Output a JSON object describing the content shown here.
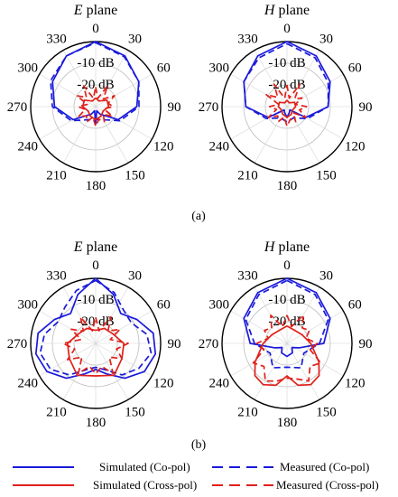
{
  "captions": [
    "(a)",
    "(b)"
  ],
  "legend": [
    {
      "label": "Simulated (Co-pol)",
      "color": "#1a1adb",
      "dash": false
    },
    {
      "label": "Simulated (Cross-pol)",
      "color": "#e0201a",
      "dash": false
    },
    {
      "label": "Measured (Co-pol)",
      "color": "#1a1adb",
      "dash": true
    },
    {
      "label": "Measured (Cross-pol)",
      "color": "#e0201a",
      "dash": true
    }
  ],
  "chart_data": [
    {
      "type": "polar",
      "panel": "(a)",
      "title": "E plane",
      "title_italic": "E",
      "title_rest": " plane",
      "angle_ticks": [
        "0",
        "30",
        "60",
        "90",
        "120",
        "150",
        "180",
        "210",
        "240",
        "270",
        "300",
        "330"
      ],
      "ring_labels": [
        "-10 dB",
        "-20 dB"
      ],
      "r_range_db": [
        -30,
        0
      ],
      "series": [
        {
          "name": "Simulated (Co-pol)",
          "color": "#1a1adb",
          "dash": false,
          "angles_deg": [
            0,
            30,
            60,
            90,
            120,
            150,
            165,
            180,
            195,
            210,
            240,
            270,
            300,
            330,
            360
          ],
          "values_db": [
            0,
            -3,
            -7,
            -11,
            -18,
            -26,
            -28,
            -22,
            -28,
            -26,
            -18,
            -11,
            -7,
            -3,
            0
          ]
        },
        {
          "name": "Measured (Co-pol)",
          "color": "#1a1adb",
          "dash": true,
          "angles_deg": [
            0,
            30,
            60,
            90,
            120,
            150,
            180,
            210,
            240,
            270,
            300,
            330,
            360
          ],
          "values_db": [
            -0.5,
            -3.5,
            -7,
            -10,
            -17,
            -23,
            -24,
            -23,
            -17,
            -10,
            -6,
            -3,
            -0.5
          ]
        },
        {
          "name": "Simulated (Cross-pol)",
          "color": "#e0201a",
          "dash": false,
          "angles_deg": [
            0,
            30,
            60,
            90,
            120,
            150,
            180,
            210,
            240,
            270,
            300,
            330,
            360
          ],
          "values_db": [
            -26,
            -27,
            -24,
            -24,
            -26,
            -25,
            -24,
            -25,
            -26,
            -24,
            -24,
            -27,
            -26
          ]
        },
        {
          "name": "Measured (Cross-pol)",
          "color": "#e0201a",
          "dash": true,
          "angles_deg": [
            0,
            15,
            30,
            45,
            60,
            75,
            90,
            105,
            120,
            135,
            150,
            165,
            180,
            195,
            210,
            225,
            240,
            255,
            270,
            285,
            300,
            315,
            330,
            345,
            360
          ],
          "values_db": [
            -21,
            -26,
            -19,
            -25,
            -20,
            -24,
            -22,
            -26,
            -21,
            -25,
            -22,
            -24,
            -21,
            -25,
            -22,
            -24,
            -21,
            -25,
            -22,
            -26,
            -20,
            -24,
            -19,
            -26,
            -21
          ]
        }
      ]
    },
    {
      "type": "polar",
      "panel": "(a)",
      "title": "H plane",
      "title_italic": "H",
      "title_rest": " plane",
      "angle_ticks": [
        "0",
        "30",
        "60",
        "90",
        "120",
        "150",
        "180",
        "210",
        "240",
        "270",
        "300",
        "330"
      ],
      "ring_labels": [
        "-10 dB",
        "-20 dB"
      ],
      "r_range_db": [
        -30,
        0
      ],
      "series": [
        {
          "name": "Simulated (Co-pol)",
          "color": "#1a1adb",
          "dash": false,
          "angles_deg": [
            0,
            30,
            60,
            90,
            120,
            140,
            160,
            180,
            200,
            220,
            240,
            270,
            300,
            330,
            360
          ],
          "values_db": [
            0,
            -3,
            -7,
            -11,
            -20,
            -28,
            -27,
            -25,
            -27,
            -28,
            -20,
            -11,
            -7,
            -3,
            0
          ]
        },
        {
          "name": "Measured (Co-pol)",
          "color": "#1a1adb",
          "dash": true,
          "angles_deg": [
            0,
            30,
            60,
            90,
            120,
            150,
            180,
            210,
            240,
            270,
            300,
            330,
            360
          ],
          "values_db": [
            -1,
            -4,
            -8,
            -11,
            -19,
            -24,
            -23,
            -24,
            -19,
            -11,
            -7,
            -4,
            -1
          ]
        },
        {
          "name": "Simulated (Cross-pol)",
          "color": "#e0201a",
          "dash": false,
          "angles_deg": [
            0,
            30,
            60,
            90,
            120,
            150,
            180,
            210,
            240,
            270,
            300,
            330,
            360
          ],
          "values_db": [
            -27,
            -28,
            -26,
            -26,
            -27,
            -26,
            -25,
            -26,
            -27,
            -26,
            -26,
            -28,
            -27
          ]
        },
        {
          "name": "Measured (Cross-pol)",
          "color": "#e0201a",
          "dash": true,
          "angles_deg": [
            0,
            15,
            30,
            45,
            60,
            75,
            90,
            105,
            120,
            135,
            150,
            165,
            180,
            195,
            210,
            225,
            240,
            255,
            270,
            285,
            300,
            315,
            330,
            345,
            360
          ],
          "values_db": [
            -20,
            -26,
            -18,
            -25,
            -22,
            -26,
            -21,
            -24,
            -20,
            -26,
            -22,
            -24,
            -21,
            -25,
            -22,
            -24,
            -20,
            -25,
            -22,
            -26,
            -19,
            -24,
            -18,
            -26,
            -20
          ]
        }
      ]
    },
    {
      "type": "polar",
      "panel": "(b)",
      "title": "E plane",
      "title_italic": "E",
      "title_rest": " plane",
      "angle_ticks": [
        "0",
        "30",
        "60",
        "90",
        "120",
        "150",
        "180",
        "210",
        "240",
        "270",
        "300",
        "330"
      ],
      "ring_labels": [
        "-10 dB",
        "-20 dB"
      ],
      "r_range_db": [
        -30,
        0
      ],
      "series": [
        {
          "name": "Simulated (Co-pol)",
          "color": "#1a1adb",
          "dash": false,
          "angles_deg": [
            0,
            20,
            40,
            60,
            80,
            100,
            120,
            140,
            160,
            180,
            200,
            220,
            240,
            260,
            280,
            300,
            320,
            340,
            360
          ],
          "values_db": [
            0,
            -6,
            -12,
            -8,
            -3,
            -2,
            -4,
            -9,
            -15,
            -18,
            -15,
            -9,
            -4,
            -2,
            -3,
            -8,
            -12,
            -6,
            0
          ]
        },
        {
          "name": "Measured (Co-pol)",
          "color": "#1a1adb",
          "dash": true,
          "angles_deg": [
            0,
            20,
            40,
            60,
            80,
            100,
            120,
            140,
            160,
            180,
            200,
            220,
            240,
            260,
            280,
            300,
            320,
            340,
            360
          ],
          "values_db": [
            -1,
            -5,
            -10,
            -11,
            -6,
            -4,
            -7,
            -11,
            -17,
            -19,
            -17,
            -11,
            -6,
            -4,
            -6,
            -10,
            -8,
            -4,
            -1
          ]
        },
        {
          "name": "Simulated (Cross-pol)",
          "color": "#e0201a",
          "dash": false,
          "angles_deg": [
            0,
            30,
            60,
            90,
            120,
            150,
            180,
            210,
            240,
            270,
            300,
            330,
            360
          ],
          "values_db": [
            -24,
            -22,
            -21,
            -17,
            -16,
            -13,
            -15,
            -13,
            -16,
            -17,
            -21,
            -22,
            -24
          ]
        },
        {
          "name": "Measured (Cross-pol)",
          "color": "#e0201a",
          "dash": true,
          "angles_deg": [
            0,
            15,
            30,
            45,
            60,
            75,
            90,
            105,
            120,
            135,
            150,
            165,
            180,
            195,
            210,
            225,
            240,
            255,
            270,
            285,
            300,
            315,
            330,
            345,
            360
          ],
          "values_db": [
            -18,
            -24,
            -16,
            -22,
            -17,
            -23,
            -15,
            -20,
            -16,
            -21,
            -14,
            -19,
            -16,
            -19,
            -14,
            -21,
            -15,
            -20,
            -15,
            -23,
            -17,
            -22,
            -16,
            -24,
            -18
          ]
        }
      ]
    },
    {
      "type": "polar",
      "panel": "(b)",
      "title": "H plane",
      "title_italic": "H",
      "title_rest": " plane",
      "angle_ticks": [
        "0",
        "30",
        "60",
        "90",
        "120",
        "150",
        "180",
        "210",
        "240",
        "270",
        "300",
        "330"
      ],
      "ring_labels": [
        "-10 dB",
        "-20 dB"
      ],
      "r_range_db": [
        -30,
        0
      ],
      "series": [
        {
          "name": "Simulated (Co-pol)",
          "color": "#1a1adb",
          "dash": false,
          "angles_deg": [
            0,
            30,
            60,
            90,
            110,
            130,
            150,
            180,
            210,
            230,
            250,
            270,
            300,
            330,
            360
          ],
          "values_db": [
            0,
            -3,
            -7,
            -13,
            -24,
            -27,
            -25,
            -24,
            -25,
            -27,
            -24,
            -13,
            -7,
            -3,
            0
          ]
        },
        {
          "name": "Measured (Co-pol)",
          "color": "#1a1adb",
          "dash": true,
          "angles_deg": [
            0,
            30,
            60,
            90,
            120,
            150,
            180,
            210,
            240,
            270,
            300,
            330,
            360
          ],
          "values_db": [
            -1,
            -4,
            -8,
            -15,
            -21,
            -17,
            -19,
            -17,
            -21,
            -15,
            -8,
            -4,
            -1
          ]
        },
        {
          "name": "Simulated (Cross-pol)",
          "color": "#e0201a",
          "dash": false,
          "angles_deg": [
            0,
            30,
            60,
            90,
            120,
            135,
            150,
            165,
            180,
            195,
            210,
            225,
            240,
            270,
            300,
            330,
            360
          ],
          "values_db": [
            -22,
            -23,
            -22,
            -19,
            -13,
            -9,
            -8,
            -10,
            -15,
            -10,
            -8,
            -9,
            -13,
            -19,
            -22,
            -23,
            -22
          ]
        },
        {
          "name": "Measured (Cross-pol)",
          "color": "#e0201a",
          "dash": true,
          "angles_deg": [
            0,
            15,
            30,
            45,
            60,
            75,
            90,
            105,
            120,
            135,
            150,
            165,
            180,
            195,
            210,
            225,
            240,
            255,
            270,
            285,
            300,
            315,
            330,
            345,
            360
          ],
          "values_db": [
            -17,
            -22,
            -15,
            -20,
            -18,
            -21,
            -16,
            -19,
            -12,
            -15,
            -10,
            -13,
            -14,
            -12,
            -10,
            -15,
            -12,
            -19,
            -16,
            -21,
            -18,
            -20,
            -15,
            -22,
            -17
          ]
        }
      ]
    }
  ]
}
